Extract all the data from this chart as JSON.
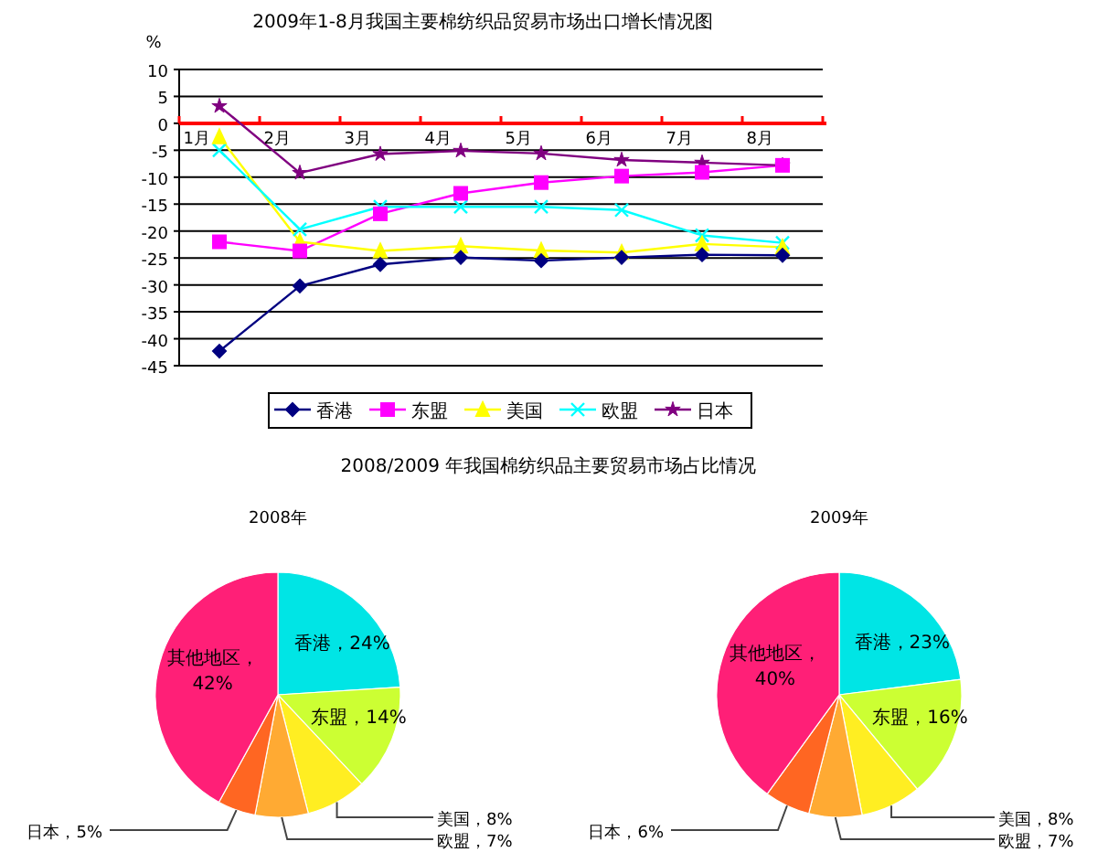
{
  "chart_data": [
    {
      "type": "line",
      "title": "2009年1-8月我国主要棉纺织品贸易市场出口增长情况图",
      "ylabel": "%",
      "categories": [
        "1月",
        "2月",
        "3月",
        "4月",
        "5月",
        "6月",
        "7月",
        "8月"
      ],
      "series": [
        {
          "name": "香港",
          "color": "#000080",
          "marker": "diamond",
          "values": [
            -42.3,
            -30.2,
            -26.2,
            -24.9,
            -25.5,
            -24.9,
            -24.4,
            -24.5
          ]
        },
        {
          "name": "东盟",
          "color": "#ff00ff",
          "marker": "square",
          "values": [
            -22,
            -23.7,
            -16.8,
            -13,
            -11,
            -9.8,
            -9.1,
            -7.8
          ]
        },
        {
          "name": "美国",
          "color": "#ffff00",
          "marker": "triangle",
          "values": [
            -2.5,
            -22,
            -23.7,
            -22.8,
            -23.6,
            -24,
            -22.4,
            -23
          ]
        },
        {
          "name": "欧盟",
          "color": "#00ffff",
          "marker": "cross",
          "values": [
            -5,
            -19.7,
            -15.5,
            -15.5,
            -15.5,
            -16.1,
            -20.8,
            -22.2
          ]
        },
        {
          "name": "日本",
          "color": "#800080",
          "marker": "star",
          "values": [
            3.2,
            -9.2,
            -5.7,
            -5.1,
            -5.6,
            -6.8,
            -7.3,
            -7.8
          ]
        }
      ],
      "ylim": [
        -45,
        10
      ],
      "yticks": [
        -45,
        -40,
        -35,
        -30,
        -25,
        -20,
        -15,
        -10,
        -5,
        0,
        5,
        10
      ],
      "grid": "y",
      "legend": "bottom"
    },
    {
      "type": "pie",
      "title": "2008/2009 年我国棉纺织品主要贸易市场占比情况",
      "subtitle": "2008年",
      "categories": [
        "香港",
        "东盟",
        "美国",
        "欧盟",
        "日本",
        "其他地区"
      ],
      "values": [
        24,
        14,
        8,
        7,
        5,
        42
      ],
      "colors": [
        "#00e5e5",
        "#ccff33",
        "#ffee22",
        "#ffaa33",
        "#ff6622",
        "#ff1f77"
      ],
      "value_labels": [
        "，24%",
        "，14%",
        "，8%",
        "，7%",
        "，5%",
        "，42%"
      ]
    },
    {
      "type": "pie",
      "subtitle": "2009年",
      "categories": [
        "香港",
        "东盟",
        "美国",
        "欧盟",
        "日本",
        "其他地区"
      ],
      "values": [
        23,
        16,
        8,
        7,
        6,
        40
      ],
      "colors": [
        "#00e5e5",
        "#ccff33",
        "#ffee22",
        "#ffaa33",
        "#ff6622",
        "#ff1f77"
      ],
      "value_labels": [
        "，23%",
        "，16%",
        "，8%",
        "，7%",
        "，6%",
        "，40%"
      ]
    }
  ]
}
